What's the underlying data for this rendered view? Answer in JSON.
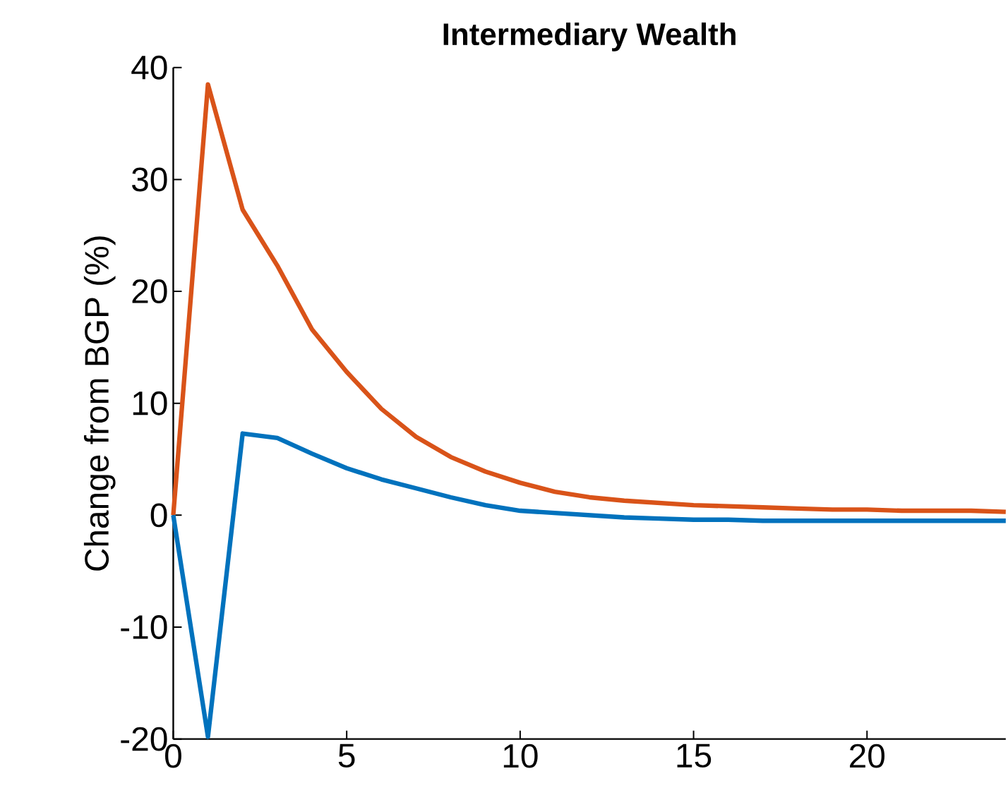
{
  "chart_data": {
    "type": "line",
    "title": "Intermediary Wealth",
    "ylabel": "Change from BGP (%)",
    "x": [
      0,
      1,
      2,
      3,
      4,
      5,
      6,
      7,
      8,
      9,
      10,
      11,
      12,
      13,
      14,
      15,
      16,
      17,
      18,
      19,
      20,
      21,
      22,
      23,
      24
    ],
    "series": [
      {
        "color": "#d95319",
        "values": [
          0,
          38.5,
          27.3,
          22.3,
          16.6,
          12.8,
          9.5,
          7,
          5.2,
          3.9,
          2.9,
          2.1,
          1.6,
          1.3,
          1.1,
          0.9,
          0.8,
          0.7,
          0.6,
          0.5,
          0.5,
          0.4,
          0.4,
          0.4,
          0.3
        ]
      },
      {
        "color": "#0072bd",
        "values": [
          0,
          -19.8,
          7.3,
          6.9,
          5.5,
          4.2,
          3.2,
          2.4,
          1.6,
          0.9,
          0.4,
          0.2,
          0,
          -0.2,
          -0.3,
          -0.4,
          -0.4,
          -0.5,
          -0.5,
          -0.5,
          -0.5,
          -0.5,
          -0.5,
          -0.5,
          -0.5
        ]
      }
    ],
    "xlim": [
      0,
      24
    ],
    "xticks": [
      0,
      5,
      10,
      15,
      20
    ],
    "ylim": [
      -20,
      40
    ],
    "yticks": [
      -20,
      -10,
      0,
      10,
      20,
      30,
      40
    ],
    "grid": false,
    "marker": "none",
    "line_style": "solid"
  }
}
